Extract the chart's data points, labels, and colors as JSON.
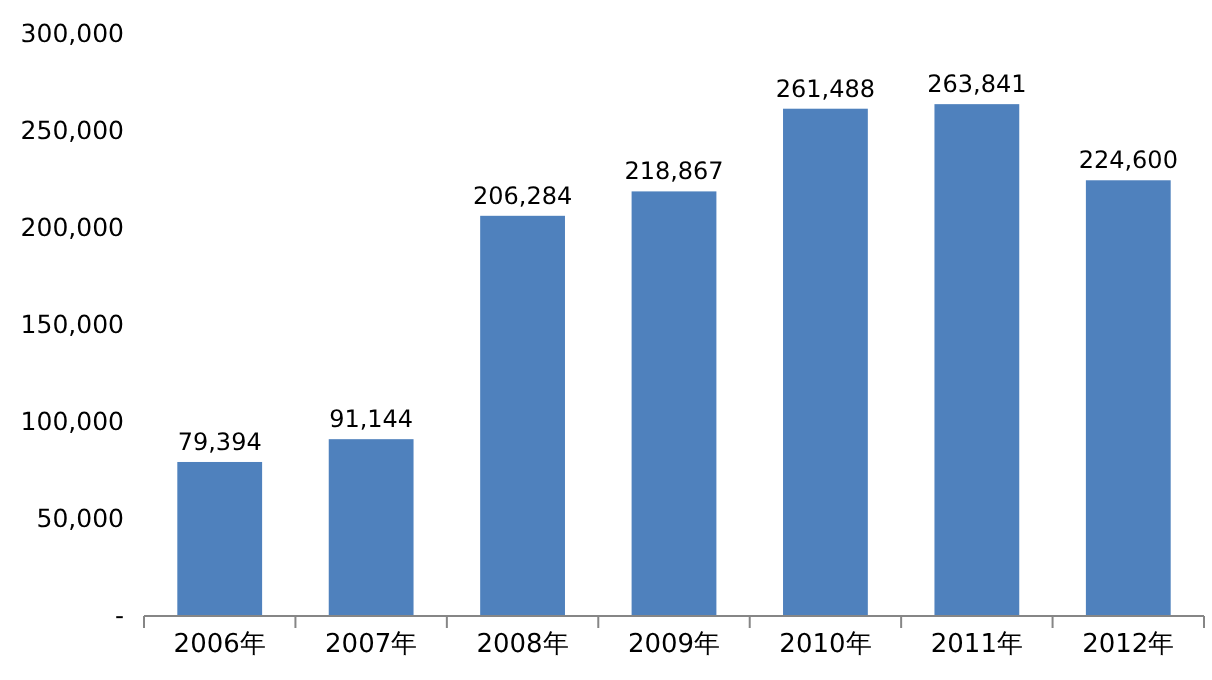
{
  "chart_data": {
    "type": "bar",
    "categories": [
      "2006年",
      "2007年",
      "2008年",
      "2009年",
      "2010年",
      "2011年",
      "2012年"
    ],
    "values": [
      79394,
      91144,
      206284,
      218867,
      261488,
      263841,
      224600
    ],
    "value_labels": [
      "79,394",
      "91,144",
      "206,284",
      "218,867",
      "261,488",
      "263,841",
      "224,600"
    ],
    "color": "#4f81bd",
    "ylim": [
      0,
      300000
    ],
    "yticks": [
      {
        "value": 0,
        "label": "-"
      },
      {
        "value": 50000,
        "label": "50,000"
      },
      {
        "value": 100000,
        "label": "100,000"
      },
      {
        "value": 150000,
        "label": "150,000"
      },
      {
        "value": 200000,
        "label": "200,000"
      },
      {
        "value": 250000,
        "label": "250,000"
      },
      {
        "value": 300000,
        "label": "300,000"
      }
    ],
    "grid": false
  }
}
